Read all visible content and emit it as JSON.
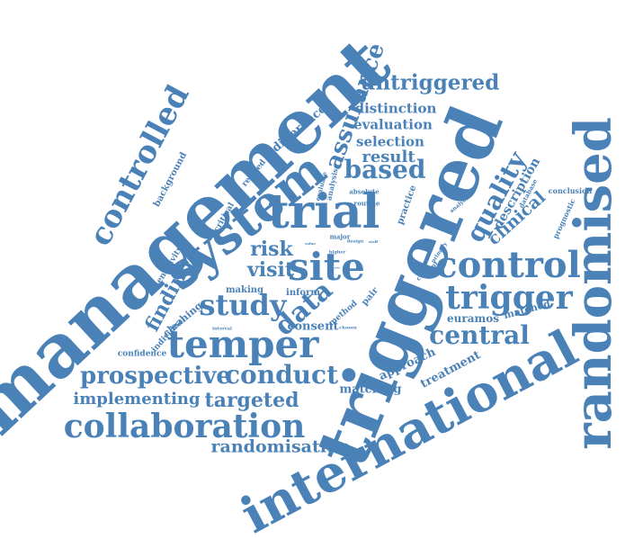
{
  "colors": {
    "word": "#4a82b8",
    "background": "#ffffff"
  },
  "words": [
    "management",
    "triggered",
    "randomised",
    "international",
    "system",
    "trial",
    "temper",
    "site",
    "control",
    "trigger",
    "collaboration",
    "controlled",
    "quality",
    "assurance",
    "untriggered",
    "study",
    "data",
    "based",
    "central",
    "conduct",
    "prospective",
    "targeted",
    "implementing",
    "randomisation",
    "visit",
    "risk",
    "finding",
    "clinical",
    "description",
    "result",
    "selection",
    "evaluation",
    "distinction",
    "difference",
    "consent",
    "approach",
    "treatment",
    "matching",
    "euramos",
    "matched",
    "cleaning",
    "making",
    "inform",
    "individual",
    "confidence",
    "sensitivity",
    "background",
    "related",
    "critical",
    "evaluate",
    "analysis",
    "practice",
    "absolute",
    "routine",
    "major",
    "higher",
    "value",
    "design",
    "staff",
    "pair",
    "method",
    "chosen",
    "interval",
    "current",
    "primary",
    "analyse",
    "database",
    "prognostic",
    "conclusion",
    "role"
  ]
}
